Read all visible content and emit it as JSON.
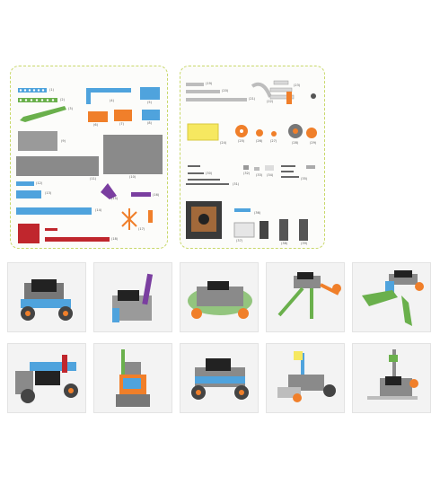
{
  "parts_panel_left": {
    "labels": [
      "(1)",
      "(2)",
      "(3)",
      "(4)",
      "(5)",
      "(6)",
      "(7)",
      "(8)",
      "(9)",
      "(10)",
      "(11)",
      "(12)",
      "(13)",
      "(14)",
      "(15)",
      "(16)",
      "(17)",
      "(18)"
    ]
  },
  "parts_panel_right": {
    "labels": [
      "(19)",
      "(20)",
      "(21)",
      "(22)",
      "(23)",
      "(24)",
      "(25)",
      "(26)",
      "(27)",
      "(28)",
      "(29)",
      "(30)",
      "(31)",
      "(32)",
      "(33)",
      "(34)",
      "(35)",
      "(36)",
      "(37)",
      "(38)",
      "(39)"
    ]
  },
  "models": [
    "model-car",
    "model-cannon",
    "model-truck",
    "model-crane",
    "model-claw",
    "model-tractor",
    "model-robot",
    "model-jeep",
    "model-bulldozer",
    "model-forklift"
  ],
  "colors": {
    "panel_border": "#c8d86a",
    "blue": "#4fa3dd",
    "green": "#6ab04c",
    "gray": "#8a8a8a",
    "orange": "#f07f2a",
    "purple": "#7a3ea0",
    "red": "#c0262d",
    "yellow": "#f6e860"
  }
}
